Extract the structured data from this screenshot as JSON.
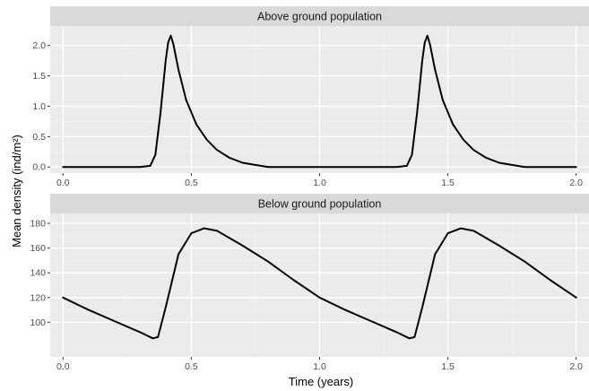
{
  "chart_data": {
    "type": "line",
    "xlabel": "Time (years)",
    "ylabel": "Mean density (ind/m²)",
    "grid": true,
    "x_ticks": [
      "0.0",
      "0.5",
      "1.0",
      "1.5",
      "2.0"
    ],
    "x_tick_values": [
      0.0,
      0.5,
      1.0,
      1.5,
      2.0
    ],
    "xlim": [
      -0.05,
      2.05
    ],
    "panels": [
      {
        "title": "Above ground population",
        "ylim": [
          -0.1,
          2.32
        ],
        "y_ticks": [
          "0.0",
          "0.5",
          "1.0",
          "1.5",
          "2.0"
        ],
        "y_tick_values": [
          0.0,
          0.5,
          1.0,
          1.5,
          2.0
        ],
        "series": [
          {
            "x": [
              0.0,
              0.3,
              0.34,
              0.36,
              0.38,
              0.4,
              0.41,
              0.42,
              0.43,
              0.45,
              0.48,
              0.52,
              0.56,
              0.6,
              0.65,
              0.7,
              0.77,
              0.8,
              1.0,
              1.3,
              1.34,
              1.36,
              1.38,
              1.4,
              1.41,
              1.42,
              1.43,
              1.45,
              1.48,
              1.52,
              1.56,
              1.6,
              1.65,
              1.7,
              1.77,
              1.8,
              2.0
            ],
            "y": [
              0.0,
              0.0,
              0.02,
              0.2,
              0.9,
              1.75,
              2.05,
              2.16,
              2.02,
              1.6,
              1.1,
              0.7,
              0.45,
              0.28,
              0.15,
              0.07,
              0.02,
              0.0,
              0.0,
              0.0,
              0.02,
              0.2,
              0.9,
              1.75,
              2.05,
              2.16,
              2.02,
              1.6,
              1.1,
              0.7,
              0.45,
              0.28,
              0.15,
              0.07,
              0.02,
              0.0,
              0.0
            ]
          }
        ]
      },
      {
        "title": "Below ground population",
        "ylim": [
          72,
          188
        ],
        "y_ticks": [
          "100",
          "120",
          "140",
          "160",
          "180"
        ],
        "y_tick_values": [
          100,
          120,
          140,
          160,
          180
        ],
        "series": [
          {
            "x": [
              0.0,
              0.1,
              0.2,
              0.3,
              0.35,
              0.37,
              0.4,
              0.45,
              0.5,
              0.55,
              0.6,
              0.7,
              0.8,
              0.9,
              1.0,
              1.1,
              1.2,
              1.3,
              1.35,
              1.37,
              1.4,
              1.45,
              1.5,
              1.55,
              1.6,
              1.7,
              1.8,
              1.9,
              2.0
            ],
            "y": [
              120,
              110,
              101,
              92,
              87,
              88,
              112,
              155,
              172,
              176,
              174,
              162,
              149,
              134,
              120,
              110,
              101,
              92,
              87,
              88,
              112,
              155,
              172,
              176,
              174,
              162,
              149,
              134,
              120
            ]
          }
        ]
      }
    ]
  }
}
